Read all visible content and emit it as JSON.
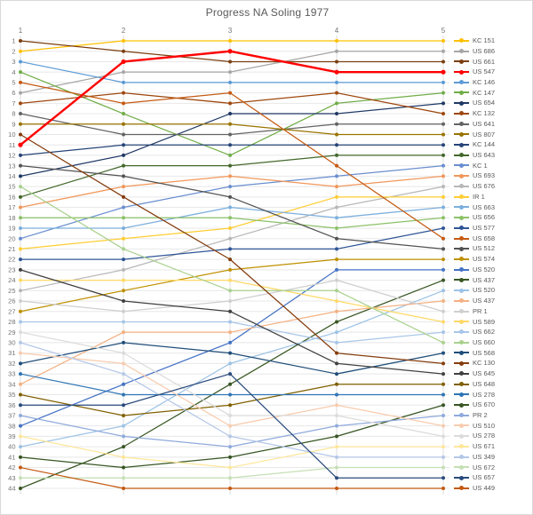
{
  "title": "Progress NA Soling 1977",
  "chart_data": {
    "type": "line",
    "subtype": "bump-rank-progression",
    "title": "Progress NA Soling 1977",
    "x_categories": [
      "1",
      "2",
      "3",
      "4",
      "5"
    ],
    "x_axis_position": "top",
    "y_axis": {
      "min": 1,
      "max": 44,
      "inverted": true,
      "tick_every": 1
    },
    "grid": true,
    "legend_position": "right",
    "gridline_color": "#e8e8e8",
    "vertical_gridline_color": "#dcdcdc",
    "axis_text_color": "#737373",
    "title_color": "#595959",
    "highlighted_series": "US 547",
    "series": [
      {
        "name": "KC 151",
        "color": "#FFC000",
        "ranks": [
          2,
          1,
          1,
          1,
          1
        ]
      },
      {
        "name": "US 686",
        "color": "#A6A6A6",
        "ranks": [
          6,
          4,
          4,
          2,
          2
        ]
      },
      {
        "name": "US 661",
        "color": "#7B3F10",
        "ranks": [
          1,
          2,
          3,
          3,
          3
        ]
      },
      {
        "name": "US 547",
        "color": "#FF0000",
        "ranks": [
          11,
          3,
          2,
          4,
          4
        ],
        "emphasis": true
      },
      {
        "name": "KC 146",
        "color": "#5B9BD5",
        "ranks": [
          3,
          5,
          5,
          5,
          5
        ]
      },
      {
        "name": "KC 147",
        "color": "#70AD47",
        "ranks": [
          4,
          8,
          12,
          7,
          6
        ]
      },
      {
        "name": "US 654",
        "color": "#1F3864",
        "ranks": [
          14,
          12,
          8,
          8,
          7
        ]
      },
      {
        "name": "KC 132",
        "color": "#9E480E",
        "ranks": [
          7,
          6,
          7,
          6,
          8
        ]
      },
      {
        "name": "US 641",
        "color": "#636363",
        "ranks": [
          8,
          10,
          10,
          9,
          9
        ]
      },
      {
        "name": "US 807",
        "color": "#997300",
        "ranks": [
          9,
          9,
          9,
          10,
          10
        ]
      },
      {
        "name": "KC 144",
        "color": "#264478",
        "ranks": [
          12,
          11,
          11,
          11,
          11
        ]
      },
      {
        "name": "US 643",
        "color": "#43682B",
        "ranks": [
          16,
          13,
          13,
          12,
          12
        ]
      },
      {
        "name": "KC 1",
        "color": "#698ED0",
        "ranks": [
          20,
          17,
          15,
          14,
          13
        ]
      },
      {
        "name": "US 693",
        "color": "#F1975A",
        "ranks": [
          17,
          15,
          14,
          15,
          14
        ]
      },
      {
        "name": "US 676",
        "color": "#B7B7B7",
        "ranks": [
          25,
          23,
          20,
          17,
          15
        ]
      },
      {
        "name": "IR 1",
        "color": "#FFCD33",
        "ranks": [
          21,
          20,
          19,
          16,
          16
        ]
      },
      {
        "name": "US 663",
        "color": "#7CAFDD",
        "ranks": [
          19,
          19,
          17,
          18,
          17
        ]
      },
      {
        "name": "US 656",
        "color": "#8CC168",
        "ranks": [
          18,
          18,
          18,
          19,
          18
        ]
      },
      {
        "name": "US 577",
        "color": "#2F5597",
        "ranks": [
          22,
          22,
          21,
          21,
          19
        ]
      },
      {
        "name": "US 658",
        "color": "#C55A11",
        "ranks": [
          5,
          7,
          6,
          13,
          20
        ]
      },
      {
        "name": "US 512",
        "color": "#525252",
        "ranks": [
          13,
          14,
          16,
          20,
          21
        ]
      },
      {
        "name": "US 574",
        "color": "#BF9000",
        "ranks": [
          27,
          25,
          23,
          22,
          22
        ]
      },
      {
        "name": "US 520",
        "color": "#4472C4",
        "ranks": [
          38,
          34,
          30,
          23,
          23
        ]
      },
      {
        "name": "US 437",
        "color": "#385723",
        "ranks": [
          44,
          40,
          34,
          28,
          24
        ]
      },
      {
        "name": "US 520",
        "color": "#9DC3E6",
        "ranks": [
          40,
          38,
          32,
          29,
          25
        ]
      },
      {
        "name": "US 437",
        "color": "#F4B183",
        "ranks": [
          34,
          29,
          29,
          27,
          26
        ]
      },
      {
        "name": "PR 1",
        "color": "#CFCFCF",
        "ranks": [
          26,
          27,
          26,
          24,
          27
        ]
      },
      {
        "name": "US 589",
        "color": "#FFD966",
        "ranks": [
          24,
          24,
          24,
          26,
          28
        ]
      },
      {
        "name": "US 662",
        "color": "#A7C6E8",
        "ranks": [
          28,
          28,
          28,
          30,
          29
        ]
      },
      {
        "name": "US 660",
        "color": "#A9D18E",
        "ranks": [
          15,
          21,
          25,
          25,
          30
        ]
      },
      {
        "name": "US 568",
        "color": "#1F4E79",
        "ranks": [
          32,
          30,
          31,
          33,
          31
        ]
      },
      {
        "name": "KC 130",
        "color": "#843C0C",
        "ranks": [
          10,
          16,
          22,
          31,
          32
        ]
      },
      {
        "name": "US 645",
        "color": "#404040",
        "ranks": [
          23,
          26,
          27,
          32,
          33
        ]
      },
      {
        "name": "US 648",
        "color": "#806000",
        "ranks": [
          35,
          37,
          36,
          34,
          34
        ]
      },
      {
        "name": "US 278",
        "color": "#2E75B6",
        "ranks": [
          33,
          35,
          35,
          35,
          35
        ]
      },
      {
        "name": "US 670",
        "color": "#375623",
        "ranks": [
          41,
          42,
          41,
          39,
          36
        ]
      },
      {
        "name": "PR 2",
        "color": "#8FAADC",
        "ranks": [
          37,
          39,
          40,
          38,
          37
        ]
      },
      {
        "name": "US 510",
        "color": "#F8CBAD",
        "ranks": [
          31,
          32,
          38,
          36,
          38
        ]
      },
      {
        "name": "US 278",
        "color": "#DBDBDB",
        "ranks": [
          29,
          31,
          37,
          37,
          39
        ]
      },
      {
        "name": "US 671",
        "color": "#FFE699",
        "ranks": [
          39,
          41,
          42,
          40,
          40
        ]
      },
      {
        "name": "US 349",
        "color": "#B4C7E7",
        "ranks": [
          30,
          33,
          39,
          41,
          41
        ]
      },
      {
        "name": "US 672",
        "color": "#C5E0B4",
        "ranks": [
          43,
          43,
          43,
          42,
          42
        ]
      },
      {
        "name": "US 657",
        "color": "#2A4B7C",
        "ranks": [
          36,
          36,
          33,
          43,
          43
        ]
      },
      {
        "name": "US 449",
        "color": "#C45911",
        "ranks": [
          42,
          44,
          44,
          44,
          44
        ]
      }
    ]
  }
}
